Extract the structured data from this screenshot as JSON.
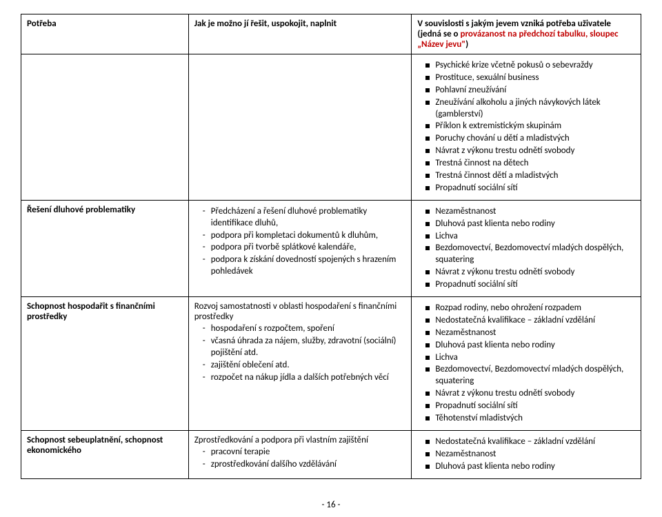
{
  "header": {
    "col1": "Potřeba",
    "col2": "Jak je možno jí řešit, uspokojit, naplnit",
    "col3_line1": "V souvislosti s jakým jevem vzniká potřeba uživatele",
    "col3_line2a": "(jedná se o ",
    "col3_line2b_red": "provázanost na předchozí tabulku, sloupec „Název jevu\"",
    "col3_line2c": ")"
  },
  "r1": {
    "bullets": [
      "Psychické krize včetně pokusů o sebevraždy",
      "Prostituce, sexuální business",
      "Pohlavní zneužívání",
      "Zneužívání alkoholu a jiných návykových látek (gamblerství)",
      "Příklon k extremistickým skupinám",
      "Poruchy chování u dětí a mladistvých",
      "Návrat z výkonu trestu odnětí svobody",
      "Trestná činnost na dětech",
      "Trestná činnost dětí a mladistvých",
      "Propadnutí sociální sítí"
    ]
  },
  "r2": {
    "label": "Řešení dluhové problematiky",
    "dash_first": "Předcházení a řešení dluhové problematiky identifikace dluhů,",
    "dashes": [
      "podpora při kompletaci dokumentů k dluhům,",
      "podpora při tvorbě splátkové kalendáře,",
      "podpora k získání dovedností spojených s hrazením pohledávek"
    ],
    "bullets": [
      "Nezaměstnanost",
      "Dluhová past klienta nebo rodiny",
      "Lichva",
      "Bezdomovectví, Bezdomovectví mladých dospělých, squatering",
      "Návrat z výkonu trestu odnětí svobody",
      "Propadnutí sociální sítí"
    ]
  },
  "r3": {
    "label": "Schopnost hospodařit s finančními prostředky",
    "intro": "Rozvoj samostatnosti v oblasti hospodaření s finančními prostředky",
    "dashes": [
      "hospodaření s rozpočtem, spoření",
      "včasná úhrada za nájem, služby, zdravotní (sociální) pojištění atd.",
      "zajištění oblečení atd.",
      "rozpočet na nákup jídla a dalších potřebných věcí"
    ],
    "bullets": [
      "Rozpad rodiny, nebo ohrožení rozpadem",
      "Nedostatečná kvalifikace – základní vzdělání",
      "Nezaměstnanost",
      "Dluhová past klienta nebo rodiny",
      "Lichva",
      "Bezdomovectví, Bezdomovectví mladých dospělých, squatering",
      "Návrat z výkonu trestu odnětí svobody",
      "Propadnutí sociální sítí",
      "Těhotenství mladistvých"
    ]
  },
  "r4": {
    "label": "Schopnost sebeuplatnění, schopnost ekonomického",
    "intro": "Zprostředkování a podpora při vlastním zajištění",
    "dashes": [
      "pracovní terapie",
      "zprostředkování dalšího vzdělávání"
    ],
    "bullets": [
      "Nedostatečná kvalifikace – základní vzdělání",
      "Nezaměstnanost",
      "Dluhová past klienta nebo rodiny"
    ]
  },
  "pageNumber": "- 16 -"
}
